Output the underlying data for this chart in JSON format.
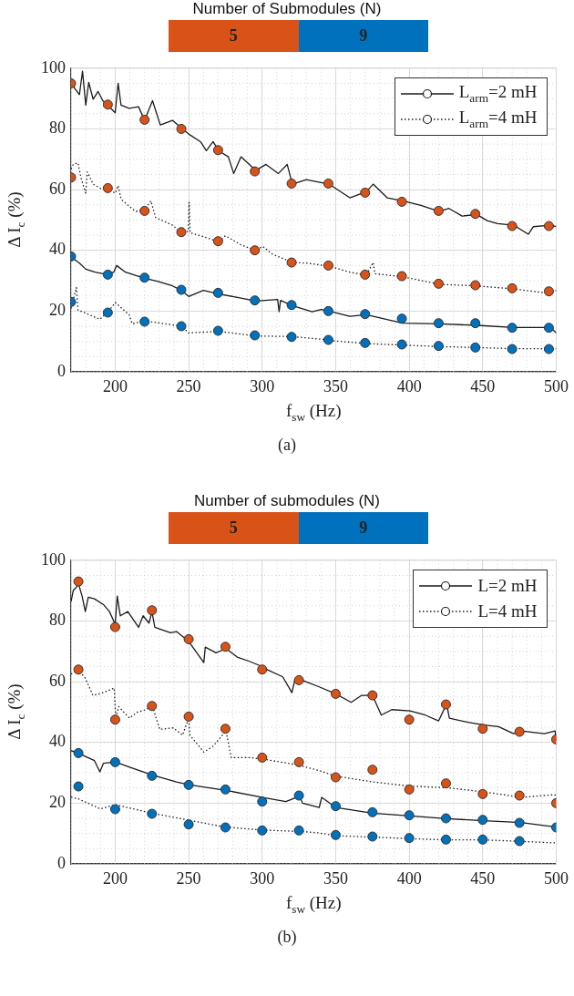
{
  "chart_data": [
    {
      "type": "line",
      "legend_title": "Number of Submodules (N)",
      "xlabel": "f$_{sw}$ (Hz)",
      "ylabel": "Δ I$_{c}$ (%)",
      "xlim": [
        170,
        500
      ],
      "xticks": [
        200,
        250,
        300,
        350,
        400,
        450,
        500
      ],
      "ylim": [
        0,
        100
      ],
      "yticks": [
        0,
        20,
        40,
        60,
        80,
        100
      ],
      "grid": true,
      "legend": "top right",
      "annotations": [
        "(a)"
      ],
      "series": [
        {
          "name": "L$_{arm}$=2 mH",
          "type": "line",
          "line_style": "solid",
          "color": "#1a1a1a",
          "x": [
            170,
            172.5,
            175.7,
            177.8,
            180,
            182,
            185,
            188.4,
            191.6,
            195,
            200,
            202,
            204,
            209.5,
            215.9,
            220,
            225.4,
            230.7,
            239,
            245,
            250,
            258,
            262,
            266.6,
            270.4,
            277,
            280.6,
            285.6,
            295.6,
            302.6,
            311,
            317,
            320.5,
            330,
            345.5,
            359.6,
            370.8,
            375.5,
            385,
            395.6,
            408,
            420.5,
            427,
            436,
            446,
            453,
            460,
            471,
            481,
            484.5,
            496,
            500
          ],
          "values": [
            96,
            93.3,
            91.3,
            99,
            87.8,
            95.3,
            89.8,
            92.3,
            89.3,
            87.8,
            85.3,
            95,
            87.8,
            86.8,
            87.3,
            82.8,
            89.3,
            81.3,
            82.8,
            80.3,
            78.3,
            75.8,
            72.8,
            75.8,
            72.8,
            70.8,
            65.3,
            70.8,
            66.3,
            68.3,
            65.3,
            68.3,
            61.8,
            63.3,
            61.8,
            57.3,
            59.3,
            61.8,
            57.3,
            56.3,
            54.8,
            52.8,
            53.8,
            51.3,
            51.8,
            49.8,
            48.8,
            48.3,
            45.3,
            47.8,
            48.3,
            47.8
          ]
        },
        {
          "name": "L$_{arm}$=4 mH",
          "type": "line",
          "line_style": "dotted",
          "color": "#1a1a1a",
          "x": [
            170,
            171.5,
            174.7,
            176.8,
            180,
            181,
            185,
            190.5,
            195,
            200,
            202,
            204,
            213.8,
            220,
            224.3,
            227.5,
            239,
            245,
            249.7,
            250.3,
            251,
            258,
            270.4,
            275,
            285.6,
            295.6,
            300.4,
            306.8,
            320.5,
            330,
            345.5,
            359.6,
            370.8,
            375.5,
            376.6,
            395.6,
            420.5,
            446,
            471,
            496,
            500
          ],
          "values": [
            66.8,
            68.3,
            68.8,
            63.8,
            58.8,
            65.8,
            61.8,
            60.3,
            60.3,
            58.8,
            61.3,
            56.8,
            52.8,
            53.3,
            56.3,
            50.8,
            48.3,
            45.8,
            46.3,
            55.8,
            45.8,
            44.8,
            42.8,
            44.8,
            41.8,
            40,
            41.3,
            38.8,
            36,
            35.8,
            34.8,
            32.8,
            31.8,
            36,
            32.3,
            31.3,
            28.8,
            28.3,
            27.3,
            25.8,
            26.8
          ]
        },
        {
          "type": "line",
          "line_style": "solid",
          "color": "#1a1a1a",
          "x": [
            170,
            175.7,
            180,
            186.3,
            195,
            199,
            201,
            207,
            220,
            228.6,
            239,
            245,
            250,
            260,
            270.4,
            285.6,
            295.6,
            310.5,
            311.5,
            312.5,
            320.5,
            334,
            340,
            345.5,
            359.6,
            370.8,
            395.6,
            420.5,
            446,
            471,
            496,
            500
          ],
          "values": [
            37.8,
            35.8,
            33.8,
            32.8,
            32,
            32.8,
            35,
            32.8,
            30.8,
            29.8,
            28.3,
            26.8,
            24.8,
            26.8,
            25.6,
            24.3,
            23.3,
            23.8,
            19.8,
            23.5,
            21.8,
            19.8,
            20.5,
            20,
            18.3,
            18.8,
            16,
            15.8,
            15.3,
            14.6,
            14.6,
            12.8
          ]
        },
        {
          "type": "line",
          "line_style": "dotted",
          "color": "#1a1a1a",
          "x": [
            170,
            173.6,
            174.7,
            180,
            189.5,
            195,
            200,
            209.5,
            211.6,
            220,
            245,
            250,
            270.4,
            295.6,
            320.5,
            342.7,
            345.5,
            370.8,
            395.6,
            420.5,
            446,
            471,
            500
          ],
          "values": [
            20.8,
            27.8,
            20.3,
            19.3,
            17.3,
            19.6,
            22.8,
            18.8,
            15.8,
            16.8,
            15,
            12.8,
            13.3,
            11.8,
            11.6,
            10.6,
            10.3,
            9.3,
            8.8,
            8.3,
            8,
            7.6,
            7.6
          ]
        },
        {
          "name": "5",
          "type": "scatter",
          "marker": "circle",
          "color": "#d95319",
          "x": [
            170,
            195,
            220,
            245,
            270,
            295,
            320,
            345,
            370,
            395,
            420,
            445,
            470,
            495,
            170,
            195,
            220,
            245,
            270,
            295,
            320,
            345,
            370,
            395,
            420,
            445,
            470,
            495
          ],
          "values": [
            95,
            88,
            83,
            80,
            73,
            66,
            62,
            62,
            59,
            56,
            53,
            52,
            48,
            48,
            64,
            60.5,
            53,
            46,
            43,
            40,
            36,
            35,
            32,
            31.5,
            29,
            28.5,
            27.5,
            26.5
          ]
        },
        {
          "name": "9",
          "type": "scatter",
          "marker": "circle",
          "color": "#0072bd",
          "x": [
            170,
            195,
            220,
            245,
            270,
            295,
            320,
            345,
            370,
            395,
            420,
            445,
            470,
            495,
            170,
            195,
            220,
            245,
            270,
            295,
            320,
            345,
            370,
            395,
            420,
            445,
            470,
            495
          ],
          "values": [
            38,
            32,
            31,
            27,
            26,
            23.5,
            22,
            20,
            19,
            17.5,
            16,
            16,
            14.5,
            14.5,
            23,
            19.5,
            16.5,
            15,
            13.5,
            12,
            11.5,
            10.5,
            9.5,
            9,
            8.5,
            8,
            7.5,
            7.5
          ]
        }
      ]
    },
    {
      "type": "line",
      "legend_title": "Number of submodules (N)",
      "xlabel": "f$_{sw}$ (Hz)",
      "ylabel": "Δ I$_{c}$ (%)",
      "xlim": [
        170,
        500
      ],
      "xticks": [
        200,
        250,
        300,
        350,
        400,
        450,
        500
      ],
      "ylim": [
        0,
        100
      ],
      "yticks": [
        0,
        20,
        40,
        60,
        80,
        100
      ],
      "grid": true,
      "legend": "top right",
      "annotations": [
        "(b)"
      ],
      "series": [
        {
          "name": "L=2 mH",
          "type": "line",
          "line_style": "solid",
          "color": "#1a1a1a",
          "x": [
            170,
            171.5,
            173.5,
            175,
            177.5,
            179.7,
            181.7,
            185.9,
            192,
            196.1,
            200,
            201.4,
            203.5,
            208.6,
            215.9,
            219,
            223,
            225,
            227,
            237.6,
            241.7,
            250,
            260.3,
            261.3,
            268.6,
            275.4,
            283,
            291.3,
            300.4,
            303.7,
            314,
            320.2,
            322.3,
            328.5,
            338.8,
            350,
            360.5,
            367.7,
            375,
            381,
            388.2,
            400.6,
            410.9,
            420,
            425.5,
            427.3,
            440,
            450.8,
            460.7,
            471,
            476,
            492,
            499.2,
            500
          ],
          "values": [
            86.4,
            90.1,
            91,
            92.4,
            88.2,
            83.1,
            87.8,
            87.3,
            85.4,
            83.1,
            78.9,
            88.2,
            81.7,
            83.1,
            77.9,
            81.7,
            79.3,
            83,
            77.9,
            76.1,
            76.5,
            73.3,
            66.3,
            71.4,
            69.5,
            70.9,
            68.1,
            66.7,
            64.9,
            63.9,
            61.6,
            56.4,
            60.7,
            60.2,
            58.3,
            56,
            53.2,
            55.5,
            55.5,
            49,
            50.8,
            50.4,
            49,
            47.1,
            52.7,
            48,
            46.6,
            45.7,
            45.2,
            42.9,
            43.8,
            42.9,
            43.8,
            40.6
          ]
        },
        {
          "name": "L=4 mH",
          "type": "line",
          "line_style": "dotted",
          "color": "#1a1a1a",
          "x": [
            170,
            175,
            179.7,
            184.9,
            192,
            199.3,
            200.4,
            202.4,
            209.7,
            214.8,
            221,
            225.2,
            230.3,
            239.6,
            245.8,
            250,
            250.8,
            260.3,
            266.5,
            275.4,
            278.9,
            291.3,
            300.4,
            324.3,
            338.8,
            350,
            375,
            400.6,
            425.5,
            450.8,
            476,
            499,
            500
          ],
          "values": [
            62.5,
            63.9,
            61.1,
            55.5,
            56.4,
            57.9,
            48,
            51.8,
            48,
            49.9,
            50.8,
            52.2,
            44.3,
            44.8,
            42.4,
            48,
            42.4,
            36.8,
            38.7,
            43.8,
            35,
            35,
            34.5,
            32.6,
            30.7,
            28.9,
            27,
            25.6,
            25.1,
            23.7,
            21.9,
            22.8,
            21.9
          ]
        },
        {
          "type": "line",
          "line_style": "solid",
          "color": "#1a1a1a",
          "x": [
            170,
            175,
            185.9,
            189.6,
            192,
            200,
            210.7,
            225,
            241.7,
            250,
            275.4,
            300.4,
            316.1,
            325.6,
            327.4,
            334.6,
            338.8,
            340.5,
            350,
            375,
            400.6,
            425.5,
            450.8,
            476,
            500
          ],
          "values": [
            37.3,
            36.4,
            34,
            30.3,
            33.1,
            33.6,
            31.7,
            29.3,
            27,
            26.1,
            24.2,
            21.9,
            20.5,
            22.3,
            20,
            19.1,
            18.6,
            21.9,
            18.6,
            16.7,
            15.8,
            14.9,
            14.2,
            13.6,
            12.1
          ]
        },
        {
          "type": "line",
          "line_style": "dotted",
          "color": "#1a1a1a",
          "x": [
            170,
            175,
            190,
            200,
            225,
            250,
            275.4,
            300.4,
            325.6,
            338.8,
            350,
            375,
            400.6,
            425.5,
            450.8,
            476,
            500
          ],
          "values": [
            22,
            21.4,
            18.1,
            19.5,
            16.7,
            14.4,
            12.1,
            11.1,
            10.7,
            10.2,
            9.3,
            8.8,
            8.3,
            7.9,
            7.9,
            7.4,
            6.9
          ]
        },
        {
          "name": "5",
          "type": "scatter",
          "marker": "circle",
          "color": "#d95319",
          "x": [
            175,
            200,
            225,
            250,
            275,
            300,
            325,
            350,
            375,
            400,
            425,
            450,
            475,
            500,
            175,
            200,
            225,
            250,
            275,
            300,
            325,
            350,
            375,
            400,
            425,
            450,
            475,
            500
          ],
          "values": [
            93,
            78,
            83.5,
            74,
            71.5,
            64,
            60.5,
            56,
            55.5,
            47.5,
            52.5,
            44.5,
            43.5,
            41,
            64,
            47.5,
            52,
            48.5,
            44.5,
            35,
            33.5,
            28.5,
            31,
            24.5,
            26.5,
            23,
            22.5,
            20
          ]
        },
        {
          "name": "9",
          "type": "scatter",
          "marker": "circle",
          "color": "#0072bd",
          "x": [
            175,
            200,
            225,
            250,
            275,
            300,
            325,
            350,
            375,
            400,
            425,
            450,
            475,
            500,
            175,
            200,
            225,
            250,
            275,
            300,
            325,
            350,
            375,
            400,
            425,
            450,
            475
          ],
          "values": [
            36.5,
            33.5,
            29,
            26,
            24.5,
            20.5,
            22.5,
            19,
            17,
            16,
            15,
            14.5,
            13.5,
            12,
            25.5,
            18,
            16.5,
            13,
            12,
            11,
            11,
            9.5,
            9,
            8.5,
            8,
            8,
            7.5
          ]
        }
      ]
    }
  ]
}
